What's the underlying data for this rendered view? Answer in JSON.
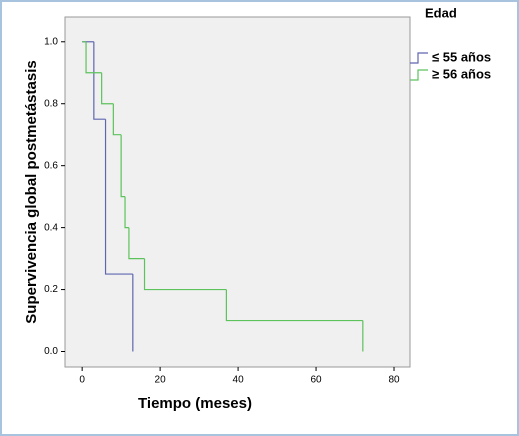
{
  "chart_data": {
    "type": "step",
    "x_label": "Tiempo (meses)",
    "y_label": "Supervivencia global postmetástasis",
    "legend_title": "Edad",
    "legend_position": "right",
    "xlim": [
      -4.4,
      84.1
    ],
    "xticks": [
      0,
      20,
      40,
      60,
      80
    ],
    "ylim": [
      -0.05,
      1.08
    ],
    "yticks": [
      {
        "value": 0,
        "label": "0.0"
      },
      0.2,
      0.4,
      0.6,
      0.8,
      {
        "value": 1,
        "label": "1.0"
      }
    ],
    "series": [
      {
        "name": "≤ 55 años",
        "color": "#6066b0",
        "x": [
          0,
          3,
          6,
          13
        ],
        "values": [
          1.0,
          0.75,
          0.25,
          0
        ]
      },
      {
        "name": "≥ 56 años",
        "color": "#5cc25c",
        "x": [
          0,
          1,
          5,
          8,
          10,
          11,
          12,
          16,
          37,
          72
        ],
        "values": [
          1.0,
          0.9,
          0.8,
          0.7,
          0.5,
          0.4,
          0.3,
          0.2,
          0.1,
          0
        ]
      }
    ]
  }
}
